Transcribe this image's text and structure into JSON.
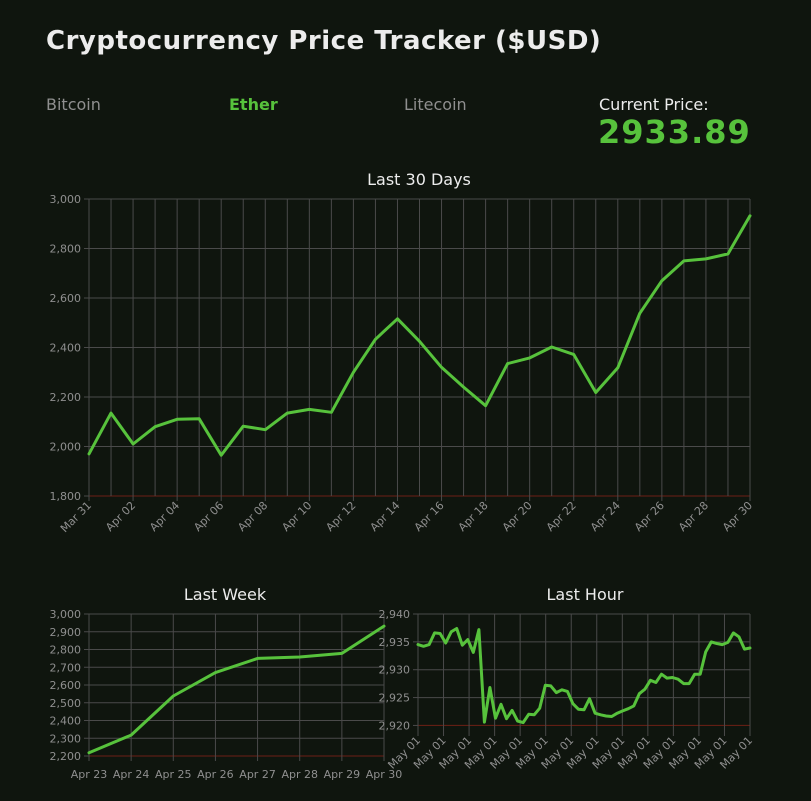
{
  "app": {
    "title": "Cryptocurrency Price Tracker ($USD)"
  },
  "tabs": [
    {
      "label": "Bitcoin",
      "active": false
    },
    {
      "label": "Ether",
      "active": true
    },
    {
      "label": "Litecoin",
      "active": false
    }
  ],
  "current_price": {
    "label": "Current Price:",
    "value": "2933.89"
  },
  "colors": {
    "line": "#57c23c",
    "grid": "#4a4a4a",
    "baseline": "#6e1f16",
    "background": "#0f150e",
    "tick": "#8f8f8f"
  },
  "chart_data": [
    {
      "id": "month",
      "type": "line",
      "title": "Last 30 Days",
      "x": [
        "Mar 31",
        "Apr 01",
        "Apr 02",
        "Apr 03",
        "Apr 04",
        "Apr 05",
        "Apr 06",
        "Apr 07",
        "Apr 08",
        "Apr 09",
        "Apr 10",
        "Apr 11",
        "Apr 12",
        "Apr 13",
        "Apr 14",
        "Apr 15",
        "Apr 16",
        "Apr 17",
        "Apr 18",
        "Apr 19",
        "Apr 20",
        "Apr 21",
        "Apr 22",
        "Apr 23",
        "Apr 24",
        "Apr 25",
        "Apr 26",
        "Apr 27",
        "Apr 28",
        "Apr 29",
        "Apr 30"
      ],
      "x_tick_labels": [
        "Mar 31",
        "Apr 02",
        "Apr 04",
        "Apr 06",
        "Apr 08",
        "Apr 10",
        "Apr 12",
        "Apr 14",
        "Apr 16",
        "Apr 18",
        "Apr 20",
        "Apr 22",
        "Apr 24",
        "Apr 26",
        "Apr 28",
        "Apr 30"
      ],
      "values": [
        1970,
        2135,
        2010,
        2080,
        2110,
        2112,
        1965,
        2082,
        2068,
        2135,
        2150,
        2138,
        2300,
        2433,
        2516,
        2425,
        2320,
        2240,
        2165,
        2335,
        2358,
        2402,
        2372,
        2218,
        2318,
        2538,
        2670,
        2750,
        2758,
        2778,
        2932
      ],
      "ylim": [
        1800,
        3000
      ],
      "y_ticks": [
        1800,
        2000,
        2200,
        2400,
        2600,
        2800,
        3000
      ],
      "y_tick_labels": [
        "1,800",
        "2,000",
        "2,200",
        "2,400",
        "2,600",
        "2,800",
        "3,000"
      ],
      "grid": true
    },
    {
      "id": "week",
      "type": "line",
      "title": "Last Week",
      "x": [
        "Apr 23",
        "Apr 24",
        "Apr 25",
        "Apr 26",
        "Apr 27",
        "Apr 28",
        "Apr 29",
        "Apr 30"
      ],
      "x_tick_labels": [
        "Apr 23",
        "Apr 24",
        "Apr 25",
        "Apr 26",
        "Apr 27",
        "Apr 28",
        "Apr 29",
        "Apr 30"
      ],
      "values": [
        2218,
        2318,
        2538,
        2670,
        2750,
        2758,
        2778,
        2932
      ],
      "ylim": [
        2200,
        3000
      ],
      "y_ticks": [
        2200,
        2300,
        2400,
        2500,
        2600,
        2700,
        2800,
        2900,
        3000
      ],
      "y_tick_labels": [
        "2,200",
        "2,300",
        "2,400",
        "2,500",
        "2,600",
        "2,700",
        "2,800",
        "2,900",
        "3,000"
      ],
      "grid": true
    },
    {
      "id": "hour",
      "type": "line",
      "title": "Last Hour",
      "x_tick_labels": [
        "May 01",
        "May 01",
        "May 01",
        "May 01",
        "May 01",
        "May 01",
        "May 01",
        "May 01",
        "May 01",
        "May 01",
        "May 01",
        "May 01",
        "May 01",
        "May 01"
      ],
      "values": [
        2934.5,
        2934.2,
        2934.5,
        2936.6,
        2936.5,
        2934.8,
        2936.8,
        2937.4,
        2934.4,
        2935.4,
        2933.1,
        2937.2,
        2920.6,
        2926.8,
        2921.3,
        2923.8,
        2921.2,
        2922.7,
        2920.8,
        2920.5,
        2922.0,
        2921.9,
        2923.1,
        2927.2,
        2927.1,
        2925.9,
        2926.4,
        2926.1,
        2923.9,
        2922.9,
        2922.8,
        2924.8,
        2922.2,
        2921.9,
        2921.7,
        2921.6,
        2922.2,
        2922.6,
        2923.0,
        2923.5,
        2925.7,
        2926.5,
        2928.1,
        2927.7,
        2929.2,
        2928.5,
        2928.6,
        2928.3,
        2927.5,
        2927.5,
        2929.2,
        2929.2,
        2933.2,
        2935.0,
        2934.7,
        2934.5,
        2934.9,
        2936.6,
        2935.9,
        2933.7,
        2933.9
      ],
      "ylim": [
        2919,
        2940
      ],
      "y_ticks": [
        2920,
        2925,
        2930,
        2935,
        2940
      ],
      "y_tick_labels": [
        "2,920",
        "2,925",
        "2,930",
        "2,935",
        "2,940"
      ],
      "grid": true
    }
  ]
}
